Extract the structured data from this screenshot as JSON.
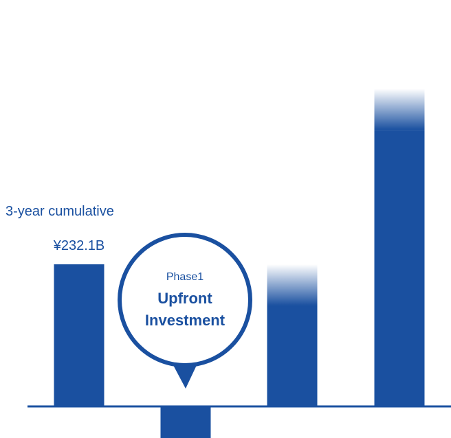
{
  "chart_data": {
    "type": "bar",
    "categories": [
      "3-year cumulative",
      "Phase1",
      "",
      ""
    ],
    "values": [
      232.1,
      -53.0,
      232.1,
      519.0
    ],
    "faded_top": [
      false,
      false,
      true,
      true
    ],
    "value_labels": [
      "¥232.1B",
      "",
      "",
      ""
    ],
    "annotations": {
      "cumulative_label": "3-year cumulative",
      "phase_label": "Phase1",
      "phase_title_line1": "Upfront",
      "phase_title_line2": "Investment"
    },
    "ylim": [
      -60,
      590
    ],
    "grid": false,
    "legend": "none",
    "colors": {
      "bar": "#1a50a0",
      "text": "#1a50a0",
      "axis": "#1a50a0",
      "bubble_fill": "#ffffff"
    }
  }
}
